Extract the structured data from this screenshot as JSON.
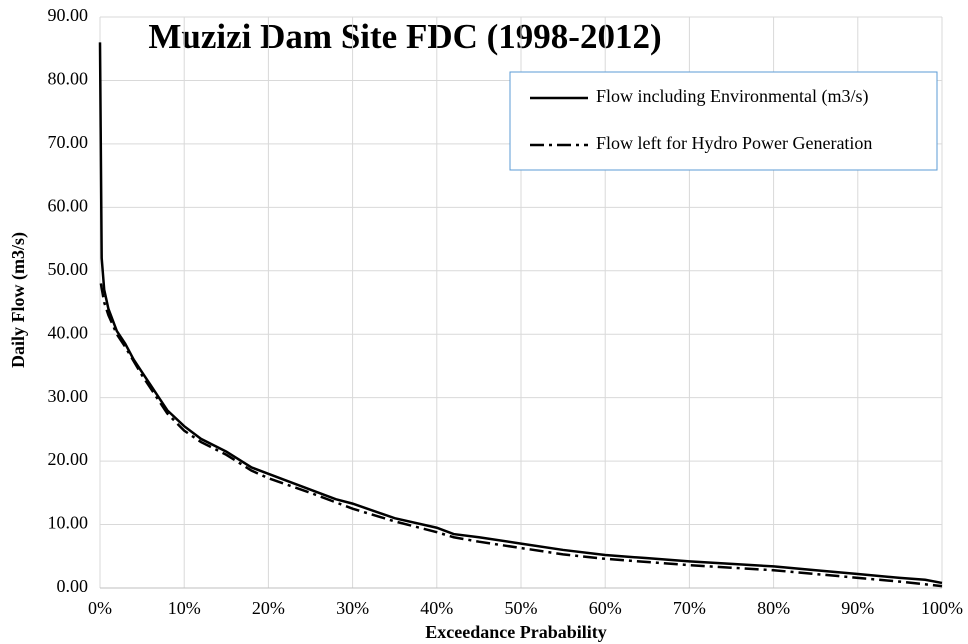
{
  "chart_data": {
    "type": "line",
    "title": "Muzizi Dam Site FDC (1998-2012)",
    "xlabel": "Exceedance Prabability",
    "ylabel": "Daily Flow (m3/s)",
    "xlim": [
      0,
      100
    ],
    "ylim": [
      0,
      90
    ],
    "xticks": [
      {
        "value": 0,
        "label": "0%"
      },
      {
        "value": 10,
        "label": "10%"
      },
      {
        "value": 20,
        "label": "20%"
      },
      {
        "value": 30,
        "label": "30%"
      },
      {
        "value": 40,
        "label": "40%"
      },
      {
        "value": 50,
        "label": "50%"
      },
      {
        "value": 60,
        "label": "60%"
      },
      {
        "value": 70,
        "label": "70%"
      },
      {
        "value": 80,
        "label": "80%"
      },
      {
        "value": 90,
        "label": "90%"
      },
      {
        "value": 100,
        "label": "100%"
      }
    ],
    "yticks": [
      {
        "value": 0,
        "label": "0.00"
      },
      {
        "value": 10,
        "label": "10.00"
      },
      {
        "value": 20,
        "label": "20.00"
      },
      {
        "value": 30,
        "label": "30.00"
      },
      {
        "value": 40,
        "label": "40.00"
      },
      {
        "value": 50,
        "label": "50.00"
      },
      {
        "value": 60,
        "label": "60.00"
      },
      {
        "value": 70,
        "label": "70.00"
      },
      {
        "value": 80,
        "label": "80.00"
      },
      {
        "value": 90,
        "label": "90.00"
      }
    ],
    "grid": true,
    "legend": "upper right",
    "series": [
      {
        "name": "Flow including Environmental (m3/s)",
        "color": "#000000",
        "dash": "solid",
        "x": [
          0,
          0.2,
          0.5,
          1,
          2,
          3,
          4,
          5,
          6,
          7,
          8,
          10,
          12,
          15,
          18,
          20,
          22,
          25,
          28,
          30,
          35,
          40,
          42,
          45,
          50,
          55,
          60,
          65,
          70,
          75,
          80,
          85,
          90,
          95,
          98,
          100
        ],
        "values": [
          86,
          52,
          47,
          44,
          40.5,
          38.5,
          36,
          34,
          32,
          30,
          28,
          25.5,
          23.5,
          21.5,
          19,
          18,
          17,
          15.5,
          14,
          13.3,
          11,
          9.5,
          8.5,
          8,
          7,
          6,
          5.2,
          4.7,
          4.2,
          3.8,
          3.4,
          2.8,
          2.2,
          1.6,
          1.3,
          0.8
        ]
      },
      {
        "name": "Flow left for Hydro Power Generation",
        "color": "#000000",
        "dash": "dashdot",
        "x": [
          0.1,
          0.5,
          1,
          2,
          3,
          5,
          7,
          8,
          10,
          12,
          15,
          18,
          20,
          25,
          30,
          35,
          40,
          42,
          45,
          50,
          55,
          60,
          65,
          70,
          75,
          80,
          85,
          90,
          95,
          100
        ],
        "values": [
          48,
          45,
          43,
          40,
          38,
          33.5,
          29.5,
          27.5,
          24.8,
          23,
          21,
          18.5,
          17.3,
          15,
          12.5,
          10.5,
          8.8,
          8,
          7.3,
          6.3,
          5.3,
          4.6,
          4.1,
          3.6,
          3.2,
          2.8,
          2.2,
          1.6,
          1.0,
          0.3
        ]
      }
    ]
  }
}
